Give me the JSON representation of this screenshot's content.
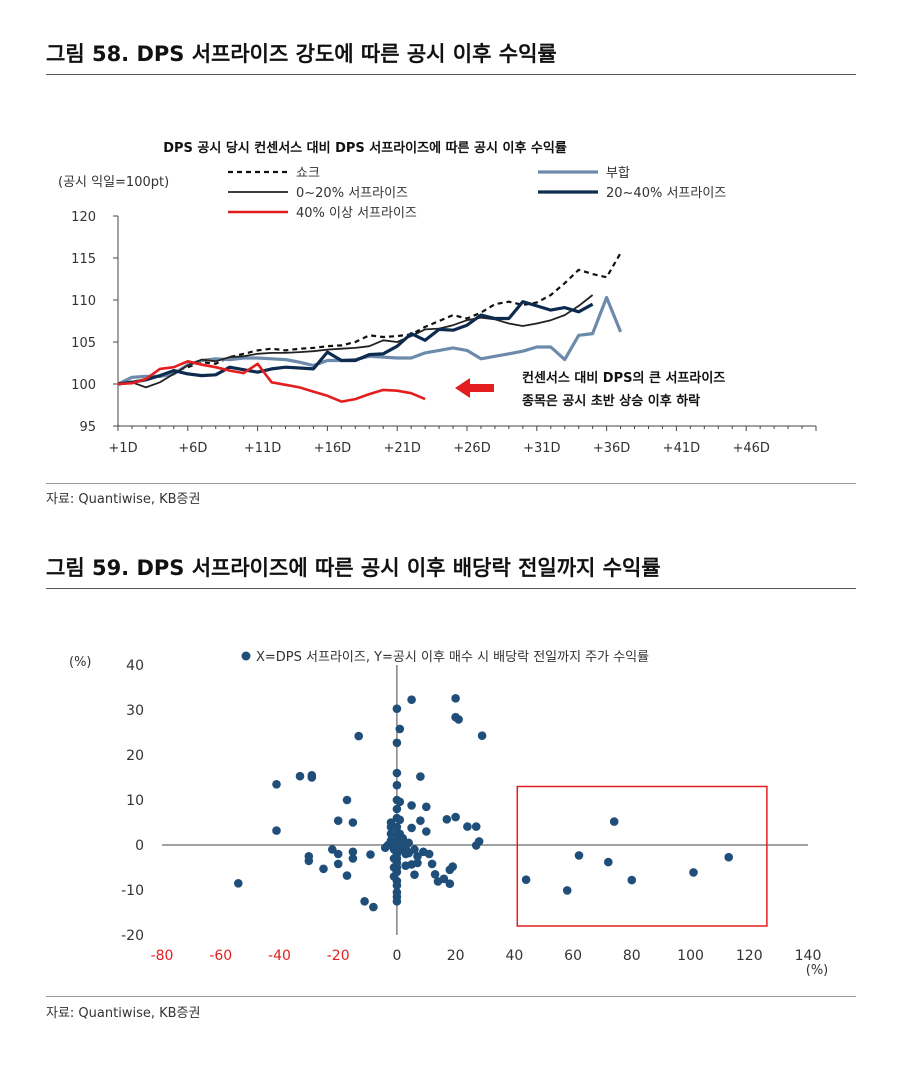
{
  "fig58": {
    "title": "그림 58. DPS 서프라이즈 강도에 따른 공시 이후 수익률",
    "source": "자료: Quantiwise, KB증권"
  },
  "fig59": {
    "title": "그림 59. DPS 서프라이즈에 따른 공시 이후 배당락 전일까지 수익률",
    "source": "자료: Quantiwise, KB증권"
  },
  "colors": {
    "shock": "#111111",
    "underperform": "#6c8aab",
    "s0_20": "#222222",
    "s20_40": "#0d2b4e",
    "s40plus": "#e41e1e",
    "scatter": "#1f4e79",
    "box": "#e41e1e",
    "arrow": "#e41e1e",
    "negtick": "#e41e1e"
  },
  "chart_data": [
    {
      "type": "line",
      "title": "DPS 공시 당시 컨센서스 대비 DPS 서프라이즈에 따른 공시 이후 수익률",
      "ylabel": "(공시 익일=100pt)",
      "xlabel": "",
      "ylim": [
        95,
        120
      ],
      "yticks": [
        95,
        100,
        105,
        110,
        115,
        120
      ],
      "xlim": [
        1,
        51
      ],
      "xtick_labels": [
        "+1D",
        "+6D",
        "+11D",
        "+16D",
        "+21D",
        "+26D",
        "+31D",
        "+36D",
        "+41D",
        "+46D"
      ],
      "annotation": [
        "컨센서스 대비 DPS의 큰 서프라이즈",
        "종목은 공시 초반 상승 이후 하락"
      ],
      "series": [
        {
          "name": "쇼크",
          "key": "shock",
          "style": "dashed",
          "values": [
            100,
            100.3,
            100.5,
            101,
            101.5,
            102,
            102.6,
            102.4,
            103.2,
            103.6,
            104,
            104.2,
            104,
            104.2,
            104.3,
            104.5,
            104.6,
            105,
            105.8,
            105.6,
            105.7,
            105.9,
            106.8,
            107.5,
            108.2,
            107.8,
            108.5,
            109.5,
            109.8,
            109.4,
            109.7,
            110.6,
            112,
            113.6,
            113.1,
            112.7,
            115.6
          ]
        },
        {
          "name": "부합",
          "key": "underperform",
          "style": "solid",
          "values": [
            100,
            100.8,
            100.9,
            100.9,
            101.2,
            102.3,
            102.8,
            103,
            102.9,
            103.1,
            103.1,
            103.0,
            102.9,
            102.6,
            102.2,
            102.8,
            102.8,
            102.9,
            103.3,
            103.2,
            103.1,
            103.1,
            103.7,
            104,
            104.3,
            104.0,
            103.0,
            103.3,
            103.6,
            103.9,
            104.4,
            104.4,
            102.9,
            105.8,
            106.0,
            110.3,
            106.2
          ]
        },
        {
          "name": "0~20% 서프라이즈",
          "key": "s0_20",
          "style": "solid",
          "values": [
            100,
            100.2,
            99.6,
            100.2,
            101.2,
            102.2,
            102.9,
            102.7,
            103.2,
            103.3,
            103.6,
            103.7,
            103.7,
            103.8,
            103.9,
            104.1,
            104.2,
            104.3,
            104.5,
            105.2,
            105.0,
            105.7,
            106.5,
            106.6,
            107.0,
            107.6,
            107.9,
            107.7,
            107.2,
            106.9,
            107.2,
            107.6,
            108.2,
            109.3,
            110.6
          ]
        },
        {
          "name": "20~40% 서프라이즈",
          "key": "s20_40",
          "style": "solid",
          "values": [
            100,
            100.2,
            100.5,
            101,
            101.6,
            101.2,
            101.0,
            101.1,
            102,
            101.7,
            101.4,
            101.8,
            102,
            101.9,
            101.8,
            103.8,
            102.8,
            102.8,
            103.5,
            103.6,
            104.5,
            106,
            105.2,
            106.5,
            106.4,
            107,
            108.2,
            107.8,
            107.8,
            109.8,
            109.3,
            108.8,
            109.1,
            108.6,
            109.5
          ]
        },
        {
          "name": "40% 이상 서프라이즈",
          "key": "s40plus",
          "style": "solid",
          "values": [
            100,
            100.1,
            100.6,
            101.8,
            102.0,
            102.7,
            102.3,
            102.0,
            101.6,
            101.3,
            102.4,
            100.2,
            99.9,
            99.6,
            99.1,
            98.6,
            97.9,
            98.2,
            98.8,
            99.3,
            99.2,
            98.9,
            98.2
          ]
        }
      ]
    },
    {
      "type": "scatter",
      "title": "X=DPS 서프라이즈, Y=공시 이후 매수 시 배당락 전일까지 주가 수익률",
      "xlabel": "(%)",
      "ylabel": "(%)",
      "xlim": [
        -80,
        140
      ],
      "ylim": [
        -20,
        40
      ],
      "xticks": [
        -80,
        -60,
        -40,
        -20,
        0,
        20,
        40,
        60,
        80,
        100,
        120,
        140
      ],
      "yticks": [
        -20,
        -10,
        0,
        10,
        20,
        30,
        40
      ],
      "highlight_box": {
        "x": [
          41,
          126
        ],
        "y": [
          -18,
          13
        ]
      },
      "points": [
        [
          -54,
          -8.5
        ],
        [
          -41,
          13.5
        ],
        [
          -41,
          3.2
        ],
        [
          -33,
          15.3
        ],
        [
          -29,
          15.5
        ],
        [
          -29,
          15.0
        ],
        [
          -30,
          -2.5
        ],
        [
          -30,
          -3.5
        ],
        [
          -25,
          -5.3
        ],
        [
          -22,
          -1
        ],
        [
          -20,
          5.4
        ],
        [
          -20,
          -2
        ],
        [
          -20,
          -4.2
        ],
        [
          -17,
          10
        ],
        [
          -15,
          5
        ],
        [
          -17,
          -6.8
        ],
        [
          -15,
          -3
        ],
        [
          -15,
          -1.5
        ],
        [
          -13,
          24.2
        ],
        [
          -11,
          -12.5
        ],
        [
          -9,
          -2.1
        ],
        [
          -8,
          -13.8
        ],
        [
          -4,
          -0.6
        ],
        [
          -3,
          0
        ],
        [
          -2,
          5
        ],
        [
          -2,
          4
        ],
        [
          -2,
          2.5
        ],
        [
          -2,
          1
        ],
        [
          -1,
          -1
        ],
        [
          -1,
          -3
        ],
        [
          -1,
          -5
        ],
        [
          -1,
          -7
        ],
        [
          0,
          30.3
        ],
        [
          0,
          22.7
        ],
        [
          0,
          16
        ],
        [
          0,
          13.3
        ],
        [
          0,
          10
        ],
        [
          0,
          8
        ],
        [
          0,
          6
        ],
        [
          0,
          4
        ],
        [
          0,
          2.5
        ],
        [
          0,
          1
        ],
        [
          0,
          -0.2
        ],
        [
          0,
          -2
        ],
        [
          0,
          -3
        ],
        [
          0,
          -4
        ],
        [
          0,
          -5
        ],
        [
          0,
          -6
        ],
        [
          0,
          -8
        ],
        [
          0,
          -9
        ],
        [
          0,
          -10.5
        ],
        [
          0,
          -11.5
        ],
        [
          0,
          -12.5
        ],
        [
          1,
          25.8
        ],
        [
          1,
          9.6
        ],
        [
          1,
          2.5
        ],
        [
          1,
          5.6
        ],
        [
          2,
          1.5
        ],
        [
          2,
          -1
        ],
        [
          2,
          0
        ],
        [
          3,
          -0.8
        ],
        [
          3,
          -2
        ],
        [
          3,
          -4.6
        ],
        [
          4,
          -1.8
        ],
        [
          4,
          0.5
        ],
        [
          5,
          32.3
        ],
        [
          5,
          8.8
        ],
        [
          5,
          3.8
        ],
        [
          5,
          -4.3
        ],
        [
          6,
          -1
        ],
        [
          6,
          -6.6
        ],
        [
          7,
          -2.5
        ],
        [
          7,
          -4
        ],
        [
          8,
          15.2
        ],
        [
          8,
          5.4
        ],
        [
          9,
          -1.5
        ],
        [
          10,
          8.5
        ],
        [
          10,
          3
        ],
        [
          11,
          -2
        ],
        [
          12,
          -4.2
        ],
        [
          13,
          -6.5
        ],
        [
          14,
          -8.1
        ],
        [
          16,
          -7.5
        ],
        [
          17,
          5.7
        ],
        [
          18,
          -8.6
        ],
        [
          18,
          -5.5
        ],
        [
          19,
          -4.8
        ],
        [
          20,
          32.6
        ],
        [
          20,
          28.4
        ],
        [
          21,
          27.9
        ],
        [
          20,
          6.2
        ],
        [
          24,
          4.1
        ],
        [
          27,
          4.1
        ],
        [
          27,
          -0.1
        ],
        [
          28,
          0.8
        ],
        [
          29,
          24.3
        ],
        [
          44,
          -7.7
        ],
        [
          58,
          -10.1
        ],
        [
          62,
          -2.3
        ],
        [
          72,
          -3.8
        ],
        [
          74,
          5.2
        ],
        [
          80,
          -7.8
        ],
        [
          101,
          -6.1
        ],
        [
          113,
          -2.7
        ]
      ]
    }
  ]
}
